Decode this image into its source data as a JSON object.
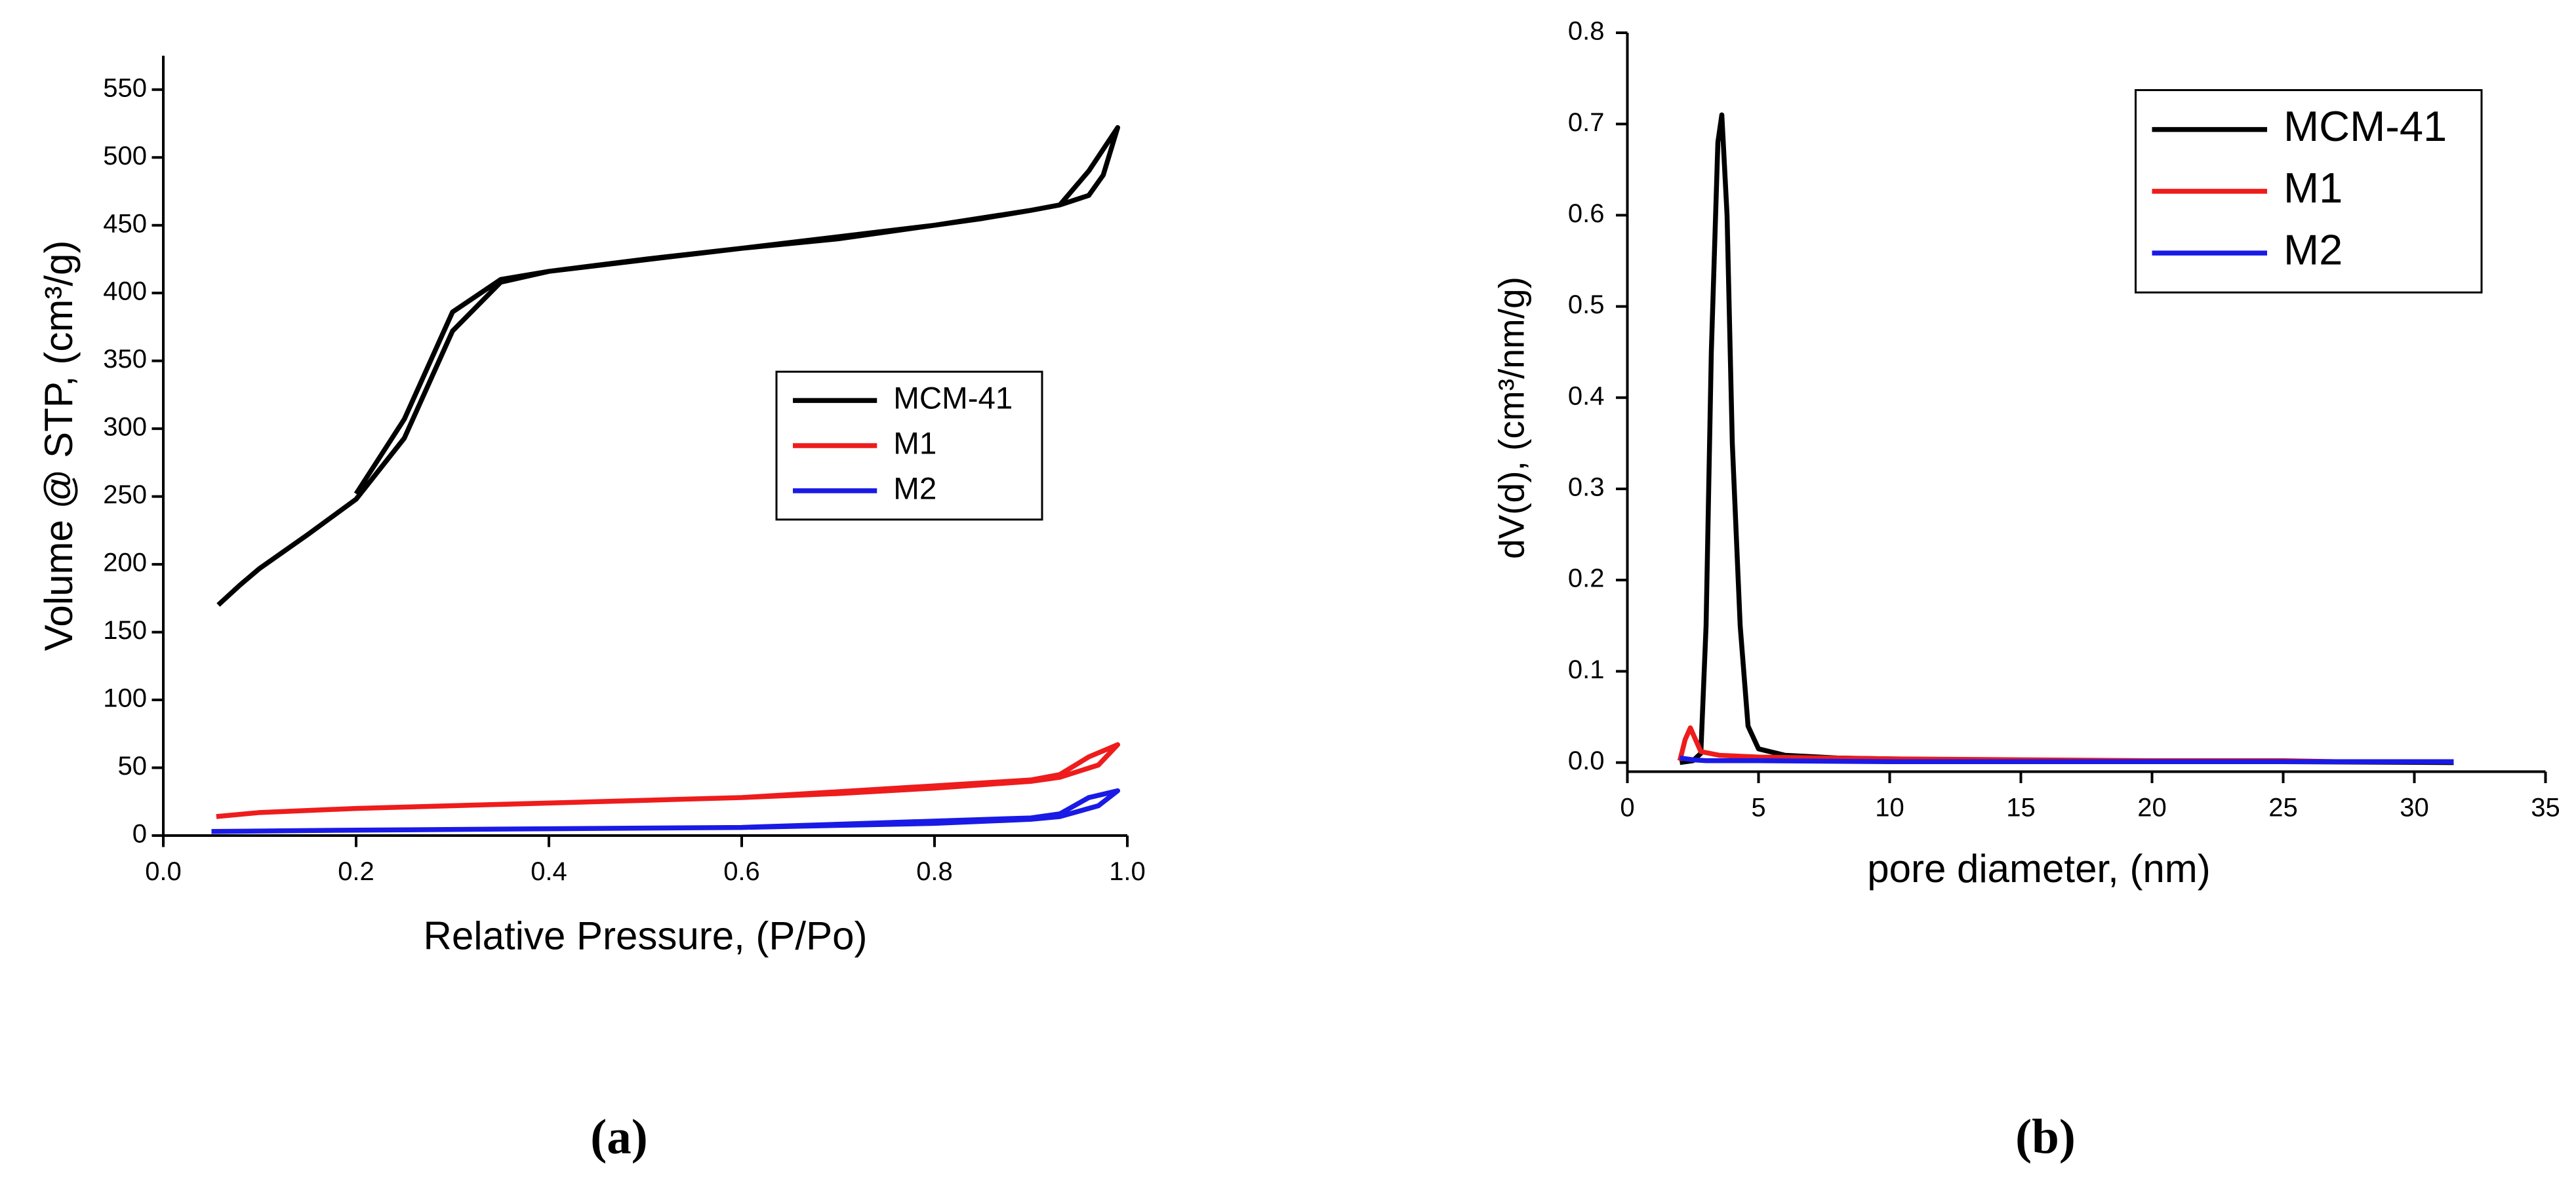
{
  "chart_data": [
    {
      "type": "line",
      "panel_label": "(a)",
      "xlabel": "Relative Pressure, (P/Po)",
      "ylabel": "Volume @ STP, (cm³/g)",
      "xlim": [
        0,
        1
      ],
      "ylim": [
        0,
        575
      ],
      "xticks": [
        {
          "value": 0,
          "label": "0.0"
        },
        0.2,
        0.4,
        0.6,
        0.8,
        {
          "value": 1,
          "label": "1.0"
        }
      ],
      "yticks": [
        0,
        50,
        100,
        150,
        200,
        250,
        300,
        350,
        400,
        450,
        500,
        550
      ],
      "legend": "center right",
      "series": [
        {
          "name": "MCM-41",
          "color": "#000000",
          "x": [
            0.057,
            0.08,
            0.1,
            0.15,
            0.2,
            0.25,
            0.3,
            0.35,
            0.4,
            0.5,
            0.6,
            0.7,
            0.8,
            0.85,
            0.9,
            0.93,
            0.96,
            0.975,
            0.99,
            0.96,
            0.93,
            0.9,
            0.8,
            0.6,
            0.4,
            0.35,
            0.3,
            0.25,
            0.2
          ],
          "values": [
            170,
            185,
            197,
            222,
            248,
            293,
            372,
            408,
            416,
            425,
            433,
            440,
            450,
            455,
            461,
            465,
            472,
            487,
            522,
            490,
            465,
            461,
            450,
            433,
            416,
            410,
            386,
            307,
            252
          ]
        },
        {
          "name": "M1",
          "color": "#ee1c1c",
          "x": [
            0.055,
            0.1,
            0.2,
            0.3,
            0.4,
            0.5,
            0.6,
            0.7,
            0.8,
            0.9,
            0.93,
            0.97,
            0.99,
            0.96,
            0.93,
            0.9,
            0.6,
            0.2
          ],
          "values": [
            14,
            17,
            20,
            22,
            24,
            26,
            28,
            31,
            35,
            40,
            43,
            52,
            67,
            58,
            45,
            41,
            28,
            20
          ]
        },
        {
          "name": "M2",
          "color": "#1a1ae6",
          "x": [
            0.05,
            0.2,
            0.4,
            0.6,
            0.8,
            0.9,
            0.93,
            0.97,
            0.99,
            0.96,
            0.93,
            0.9,
            0.6
          ],
          "values": [
            3,
            4,
            5,
            6,
            9,
            12,
            14,
            22,
            33,
            28,
            16,
            13,
            6
          ]
        }
      ]
    },
    {
      "type": "line",
      "panel_label": "(b)",
      "xlabel": "pore diameter, (nm)",
      "ylabel": "dV(d), (cm³/nm/g)",
      "xlim": [
        0,
        35
      ],
      "ylim": [
        -0.01,
        0.8
      ],
      "xticks": [
        0,
        5,
        10,
        15,
        20,
        25,
        30,
        35
      ],
      "yticks": [
        {
          "value": 0,
          "label": "0.0"
        },
        0.1,
        0.2,
        0.3,
        0.4,
        0.5,
        0.6,
        0.7,
        0.8
      ],
      "legend": "upper right",
      "series": [
        {
          "name": "MCM-41",
          "color": "#000000",
          "x": [
            2.0,
            2.5,
            2.8,
            3.0,
            3.2,
            3.45,
            3.6,
            3.8,
            4.0,
            4.3,
            4.6,
            5.0,
            6,
            8,
            10,
            15,
            20,
            25,
            31.5
          ],
          "values": [
            0,
            0.002,
            0.01,
            0.15,
            0.45,
            0.68,
            0.71,
            0.6,
            0.35,
            0.15,
            0.04,
            0.015,
            0.008,
            0.005,
            0.004,
            0.002,
            0.001,
            0.001,
            0
          ]
        },
        {
          "name": "M1",
          "color": "#ee1c1c",
          "x": [
            2.0,
            2.2,
            2.4,
            2.6,
            2.8,
            3.5,
            5,
            10,
            15,
            20,
            25,
            27
          ],
          "values": [
            0.002,
            0.025,
            0.038,
            0.025,
            0.012,
            0.008,
            0.006,
            0.004,
            0.003,
            0.002,
            0.002,
            0.001
          ]
        },
        {
          "name": "M2",
          "color": "#1a1ae6",
          "x": [
            2.0,
            2.5,
            3,
            5,
            10,
            20,
            31.5
          ],
          "values": [
            0.005,
            0.003,
            0.002,
            0.002,
            0.001,
            0.001,
            0.001
          ]
        }
      ]
    }
  ]
}
